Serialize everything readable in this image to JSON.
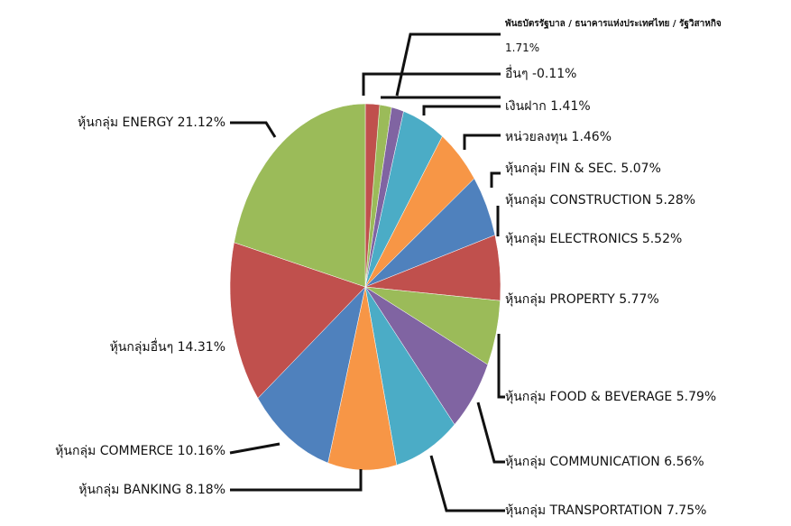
{
  "chart_data": {
    "type": "pie",
    "categories": [
      "พันธบัตรรัฐบาล / ธนาคารแห่งประเทศไทย / รัฐวิสาหกิจ",
      "อื่นๆ",
      "เงินฝาก",
      "หน่วยลงทุน",
      "หุ้นกลุ่ม FIN & SEC.",
      "หุ้นกลุ่ม CONSTRUCTION",
      "หุ้นกลุ่ม ELECTRONICS",
      "หุ้นกลุ่ม PROPERTY",
      "หุ้นกลุ่ม FOOD & BEVERAGE",
      "หุ้นกลุ่ม COMMUNICATION",
      "หุ้นกลุ่ม TRANSPORTATION",
      "หุ้นกลุ่ม BANKING",
      "หุ้นกลุ่ม COMMERCE",
      "หุ้นกลุ่มอื่นๆ",
      "หุ้นกลุ่ม ENERGY"
    ],
    "values": [
      1.71,
      -0.11,
      1.41,
      1.46,
      5.07,
      5.28,
      5.52,
      5.77,
      5.79,
      6.56,
      7.75,
      8.18,
      10.16,
      14.31,
      21.12
    ],
    "value_labels": [
      "1.71%",
      "-0.11%",
      "1.41%",
      "1.46%",
      "5.07%",
      "5.28%",
      "5.52%",
      "5.77%",
      "5.79%",
      "6.56%",
      "7.75%",
      "8.18%",
      "10.16%",
      "14.31%",
      "21.12%"
    ],
    "colors": [
      "#c0504d",
      "#9bbb59",
      "#9bbb59",
      "#8064a2",
      "#4bacc6",
      "#f79646",
      "#4f81bd",
      "#c0504d",
      "#9bbb59",
      "#8064a2",
      "#4bacc6",
      "#f79646",
      "#4f81bd",
      "#c0504d",
      "#9bbb59"
    ]
  }
}
